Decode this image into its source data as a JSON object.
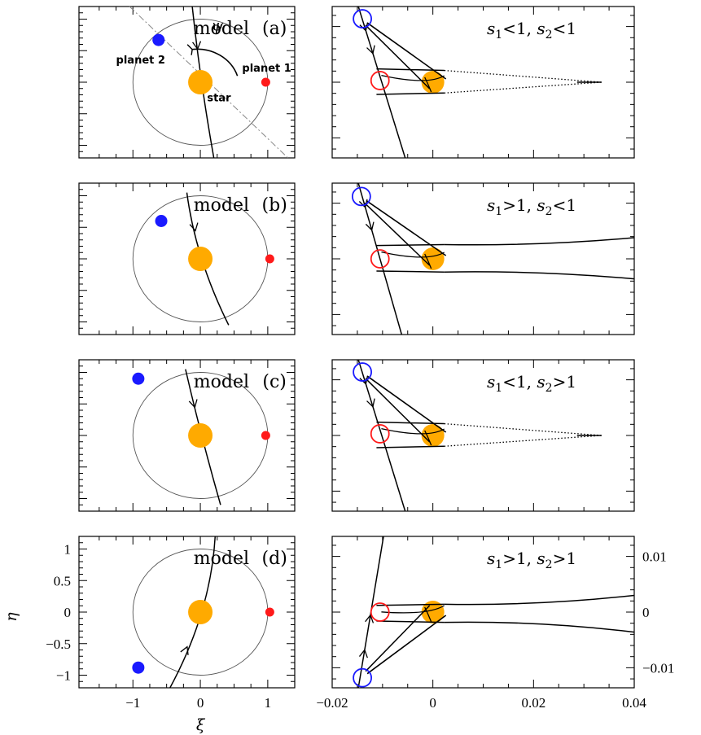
{
  "chart_data": [
    {
      "type": "scatter",
      "panel": "left",
      "xlabel": "ξ",
      "ylabel": "η",
      "xlim": [
        -1.8,
        1.4
      ],
      "ylim": [
        -1.2,
        1.2
      ],
      "x_ticks": [
        -1,
        0,
        1
      ],
      "x_tick_labels": [
        "−1",
        "0",
        "1"
      ],
      "y_ticks": [
        1,
        0.5,
        0,
        -0.5,
        -1
      ],
      "y_tick_labels": [
        "1",
        "0.5",
        "0",
        "−0.5",
        "−1"
      ],
      "labels": {
        "planet1": "planet 1",
        "planet2": "planet 2",
        "star": "star",
        "psi": "ψ"
      },
      "colors": {
        "star": "#ffaa00",
        "planet1": "#ff1a1a",
        "planet2": "#1a1aff"
      },
      "ring_radius": 1.0,
      "panels": [
        {
          "model": "model",
          "tag": "(a)",
          "star": [
            0,
            0
          ],
          "planet1": [
            0.97,
            0.0
          ],
          "planet2": [
            -0.62,
            0.67
          ],
          "trajectory": [
            [
              -0.12,
              1.2
            ],
            [
              0.02,
              0.0
            ],
            [
              0.2,
              -1.2
            ]
          ]
        },
        {
          "model": "model",
          "tag": "(b)",
          "star": [
            0,
            0
          ],
          "planet1": [
            1.03,
            0.0
          ],
          "planet2": [
            -0.58,
            0.6
          ],
          "trajectory": [
            [
              -0.2,
              1.05
            ],
            [
              0.02,
              0.0
            ],
            [
              0.42,
              -1.05
            ]
          ]
        },
        {
          "model": "model",
          "tag": "(c)",
          "star": [
            0,
            0
          ],
          "planet1": [
            0.97,
            0.0
          ],
          "planet2": [
            -0.92,
            0.9
          ],
          "trajectory": [
            [
              -0.22,
              1.05
            ],
            [
              0.02,
              0.0
            ],
            [
              0.3,
              -1.1
            ]
          ]
        },
        {
          "model": "model",
          "tag": "(d)",
          "star": [
            0,
            0
          ],
          "planet1": [
            1.03,
            0.0
          ],
          "planet2": [
            -0.92,
            -0.88
          ],
          "trajectory": [
            [
              -0.45,
              -1.2
            ],
            [
              0.02,
              0.0
            ],
            [
              0.22,
              1.2
            ]
          ]
        }
      ]
    },
    {
      "type": "line",
      "panel": "right",
      "xlim": [
        -0.02,
        0.04
      ],
      "ylim": [
        -0.0136,
        0.0136
      ],
      "x_ticks": [
        -0.02,
        0,
        0.02,
        0.04
      ],
      "x_tick_labels": [
        "−0.02",
        "0",
        "0.02",
        "0.04"
      ],
      "y_ticks": [
        0.01,
        0,
        -0.01
      ],
      "y_tick_labels": [
        "0.01",
        "0",
        "−0.01"
      ],
      "panels": [
        {
          "title": [
            "s",
            "1",
            "<1,  ",
            "s",
            "2",
            "<1"
          ],
          "blue_circle": [
            -0.014,
            0.0114
          ],
          "red_circle": [
            -0.0105,
            0.0003
          ],
          "orange_disk": [
            0.0,
            0.0
          ],
          "caustic_tip": [
            0.0335,
            0.0
          ],
          "trajectory": [
            [
              -0.0148,
              0.0136
            ],
            [
              -0.0055,
              -0.0136
            ]
          ],
          "spread_type": "converging",
          "upper": [
            [
              -0.0112,
              0.0024
            ],
            [
              0.0335,
              0.0
            ]
          ],
          "lower": [
            [
              -0.0112,
              -0.0022
            ],
            [
              0.0335,
              0.0
            ]
          ]
        },
        {
          "title": [
            "s",
            "1",
            ">1,  ",
            "s",
            "2",
            "<1"
          ],
          "blue_circle": [
            -0.0142,
            0.0112
          ],
          "red_circle": [
            -0.0105,
            0.0
          ],
          "orange_disk": [
            0.0,
            0.0
          ],
          "trajectory": [
            [
              -0.0148,
              0.0136
            ],
            [
              -0.0062,
              -0.0136
            ]
          ],
          "spread_type": "diverging",
          "upper": [
            [
              -0.0112,
              0.0024
            ],
            [
              0.04,
              0.0038
            ]
          ],
          "lower": [
            [
              -0.0112,
              -0.0022
            ],
            [
              0.04,
              -0.0036
            ]
          ]
        },
        {
          "title": [
            "s",
            "1",
            "<1,  ",
            "s",
            "2",
            ">1"
          ],
          "blue_circle": [
            -0.014,
            0.0114
          ],
          "red_circle": [
            -0.0105,
            0.0003
          ],
          "orange_disk": [
            0.0,
            0.0
          ],
          "caustic_tip": [
            0.0335,
            0.0
          ],
          "trajectory": [
            [
              -0.0148,
              0.0136
            ],
            [
              -0.0055,
              -0.0136
            ]
          ],
          "spread_type": "converging",
          "upper": [
            [
              -0.0112,
              0.0024
            ],
            [
              0.0335,
              0.0
            ]
          ],
          "lower": [
            [
              -0.0112,
              -0.0022
            ],
            [
              0.0335,
              0.0
            ]
          ]
        },
        {
          "title": [
            "s",
            "1",
            ">1,  ",
            "s",
            "2",
            ">1"
          ],
          "blue_circle": [
            -0.014,
            -0.0118
          ],
          "red_circle": [
            -0.0105,
            0.0
          ],
          "orange_disk": [
            0.0,
            0.0
          ],
          "trajectory": [
            [
              -0.0148,
              -0.0136
            ],
            [
              -0.0098,
              0.0136
            ]
          ],
          "spread_type": "diverging",
          "upper": [
            [
              -0.0112,
              0.0012
            ],
            [
              0.04,
              0.003
            ]
          ],
          "lower": [
            [
              -0.0112,
              -0.0016
            ],
            [
              0.04,
              -0.0036
            ]
          ]
        }
      ]
    }
  ]
}
